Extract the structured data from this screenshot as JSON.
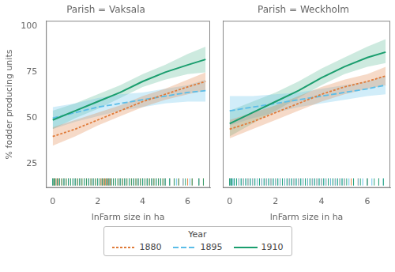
{
  "chart_data": [
    {
      "type": "line",
      "title": "Parish = Vaksala",
      "xlabel": "lnFarm size in ha",
      "ylabel": "% fodder producing units",
      "xlim": [
        -0.3,
        7.0
      ],
      "ylim": [
        12,
        103
      ],
      "xticks": [
        0,
        2,
        4,
        6
      ],
      "yticks": [
        25,
        50,
        75,
        100
      ],
      "grid": false,
      "legend": "bottom",
      "legend_title": "Year",
      "series": [
        {
          "name": "1880",
          "color": "#E07B39",
          "line_style": "short_dash",
          "x": [
            0,
            1,
            2,
            3,
            4,
            5,
            6,
            6.8
          ],
          "values": [
            40,
            44,
            49,
            54,
            59,
            63,
            67,
            70
          ],
          "lower": [
            35,
            40,
            46,
            51,
            56,
            60,
            63,
            65
          ],
          "upper": [
            45,
            49,
            53,
            57,
            62,
            66,
            71,
            75
          ],
          "rug": [
            0.0,
            0.05,
            0.1,
            0.15,
            0.2,
            0.25,
            0.3,
            0.4,
            0.5,
            0.6,
            0.7,
            0.8,
            0.9,
            1.0,
            1.1,
            1.2,
            1.3,
            1.4,
            1.5,
            1.6,
            1.7,
            1.8,
            1.9,
            2.0,
            2.1,
            2.15,
            2.2,
            2.25,
            2.3,
            2.35,
            2.4,
            2.45,
            2.5,
            2.55,
            2.6,
            2.7,
            2.8,
            2.9,
            3.0,
            3.1,
            3.2,
            3.3,
            3.4,
            3.5,
            3.6,
            3.7,
            3.8,
            3.9,
            4.0,
            4.1,
            4.2,
            4.3,
            4.4,
            4.5,
            4.6,
            4.7,
            4.8,
            4.9,
            5.0,
            5.2,
            5.4,
            5.6,
            5.8,
            6.0,
            6.2,
            6.5,
            6.7
          ]
        },
        {
          "name": "1895",
          "color": "#5BBDE8",
          "line_style": "long_dash",
          "x": [
            0,
            1,
            2,
            3,
            4,
            5,
            6,
            6.8
          ],
          "values": [
            50,
            53,
            56,
            58,
            60,
            62,
            64,
            65
          ],
          "lower": [
            44,
            48,
            51,
            54,
            56,
            58,
            59,
            59
          ],
          "upper": [
            56,
            58,
            61,
            63,
            64,
            66,
            68,
            71
          ],
          "rug": [
            0.0,
            0.1,
            0.2,
            0.3,
            0.5,
            0.7,
            0.9,
            1.0,
            1.2,
            1.4,
            1.6,
            1.8,
            2.0,
            2.2,
            2.4,
            2.5,
            2.6,
            2.8,
            3.0,
            3.2,
            3.4,
            3.6,
            3.8,
            4.0,
            4.2,
            4.4,
            4.6,
            4.8,
            5.0,
            5.2,
            5.5,
            5.8,
            6.1,
            6.5
          ]
        },
        {
          "name": "1910",
          "color": "#1A9E6E",
          "line_style": "solid",
          "x": [
            0,
            1,
            2,
            3,
            4,
            5,
            6,
            6.8
          ],
          "values": [
            49,
            54,
            59,
            64,
            70,
            75,
            79,
            82
          ],
          "lower": [
            44,
            50,
            55,
            61,
            67,
            71,
            74,
            75
          ],
          "upper": [
            54,
            58,
            63,
            68,
            74,
            79,
            85,
            89
          ],
          "rug": [
            0.0,
            0.05,
            0.1,
            0.2,
            0.3,
            0.4,
            0.5,
            0.6,
            0.7,
            0.8,
            0.9,
            1.0,
            1.1,
            1.2,
            1.3,
            1.4,
            1.5,
            1.6,
            1.7,
            1.8,
            1.9,
            2.0,
            2.1,
            2.2,
            2.3,
            2.4,
            2.5,
            2.6,
            2.7,
            2.8,
            2.9,
            3.0,
            3.1,
            3.2,
            3.3,
            3.4,
            3.5,
            3.6,
            3.7,
            3.8,
            3.9,
            4.0,
            4.1,
            4.2,
            4.3,
            4.4,
            4.5,
            4.6,
            4.7,
            4.8,
            4.9,
            5.0,
            5.2,
            5.4,
            5.6,
            5.9,
            6.2,
            6.5,
            6.7
          ]
        }
      ]
    },
    {
      "type": "line",
      "title": "Parish = Weckholm",
      "xlabel": "lnFarm size in ha",
      "xlim": [
        -0.3,
        7.0
      ],
      "ylim": [
        12,
        103
      ],
      "xticks": [
        0,
        2,
        4,
        6
      ],
      "yticks": [
        25,
        50,
        75,
        100
      ],
      "grid": false,
      "tick_labels": "x",
      "series": [
        {
          "name": "1880",
          "color": "#E07B39",
          "line_style": "short_dash",
          "x": [
            0,
            1,
            2,
            3,
            4,
            5,
            6,
            6.8
          ],
          "values": [
            44,
            48,
            53,
            58,
            63,
            67,
            70,
            73
          ],
          "lower": [
            39,
            44,
            49,
            54,
            59,
            63,
            66,
            68
          ],
          "upper": [
            49,
            53,
            57,
            62,
            67,
            71,
            74,
            78
          ],
          "rug": [
            0.0,
            0.1,
            0.2,
            0.4,
            0.6,
            0.8,
            1.0,
            1.2,
            1.4,
            1.6,
            1.8,
            2.0,
            2.2,
            2.4,
            2.6,
            2.8,
            3.0,
            3.2,
            3.4,
            3.6,
            3.8,
            4.0,
            4.2,
            4.4,
            4.6,
            4.8,
            5.0,
            5.3,
            5.6,
            6.0,
            6.5
          ]
        },
        {
          "name": "1895",
          "color": "#5BBDE8",
          "line_style": "long_dash",
          "x": [
            0,
            1,
            2,
            3,
            4,
            5,
            6,
            6.8
          ],
          "values": [
            54,
            56,
            58,
            60,
            62,
            64,
            66,
            68
          ],
          "lower": [
            46,
            50,
            53,
            56,
            58,
            60,
            62,
            63
          ],
          "upper": [
            62,
            62,
            63,
            64,
            66,
            68,
            70,
            73
          ],
          "rug": [
            0.0,
            0.05,
            0.1,
            0.15,
            0.2,
            0.3,
            0.4,
            0.5,
            0.6,
            0.7,
            0.8,
            0.9,
            1.0,
            1.1,
            1.2,
            1.3,
            1.4,
            1.5,
            1.6,
            1.7,
            1.8,
            1.9,
            2.0,
            2.1,
            2.2,
            2.3,
            2.4,
            2.5,
            2.6,
            2.7,
            2.8,
            2.9,
            3.0,
            3.1,
            3.2,
            3.3,
            3.4,
            3.5,
            3.6,
            3.7,
            3.8,
            3.9,
            4.0,
            4.1,
            4.2,
            4.3,
            4.4,
            4.5,
            4.6,
            4.7,
            4.8,
            4.9,
            5.0,
            5.2,
            5.4,
            5.6,
            5.8,
            6.0,
            6.2,
            6.5,
            6.7
          ]
        },
        {
          "name": "1910",
          "color": "#1A9E6E",
          "line_style": "solid",
          "x": [
            0,
            1,
            2,
            3,
            4,
            5,
            6,
            6.8
          ],
          "values": [
            47,
            53,
            59,
            65,
            72,
            78,
            83,
            86
          ],
          "lower": [
            40,
            47,
            54,
            61,
            68,
            74,
            78,
            80
          ],
          "upper": [
            54,
            59,
            64,
            70,
            77,
            83,
            89,
            93
          ],
          "rug": [
            0.0,
            0.05,
            0.1,
            0.2,
            0.3,
            0.5,
            0.7,
            0.9,
            1.1,
            1.3,
            1.5,
            1.7,
            1.9,
            2.1,
            2.3,
            2.5,
            2.7,
            2.9,
            3.1,
            3.3,
            3.5,
            3.7,
            3.9,
            4.1,
            4.3,
            4.5,
            4.7,
            4.9,
            5.1,
            5.4,
            5.7,
            6.0,
            6.3,
            6.5,
            6.7
          ]
        }
      ]
    }
  ]
}
